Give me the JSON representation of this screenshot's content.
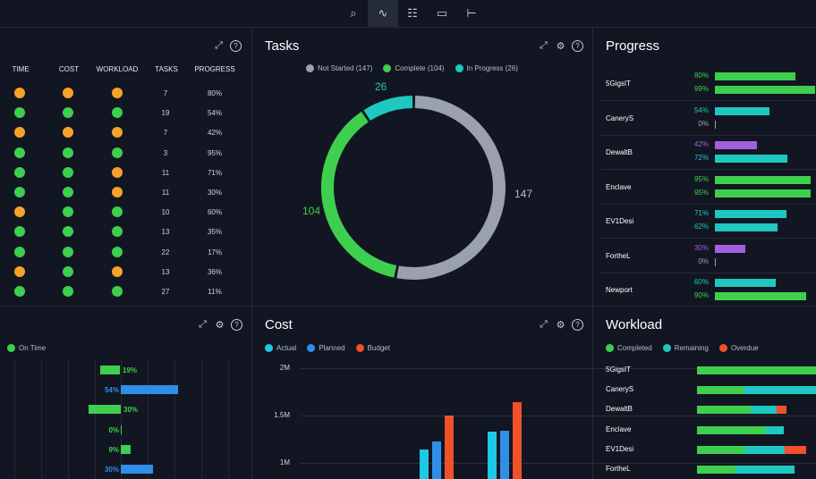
{
  "toolbar": {
    "buttons": [
      {
        "name": "zoom-icon",
        "glyph": "⌕"
      },
      {
        "name": "pulse-icon",
        "glyph": "∿",
        "active": true
      },
      {
        "name": "clipboard-icon",
        "glyph": "☷"
      },
      {
        "name": "link-icon",
        "glyph": "▭"
      },
      {
        "name": "hierarchy-icon",
        "glyph": "⊢"
      }
    ]
  },
  "health": {
    "headers": [
      "TIME",
      "COST",
      "WORKLOAD",
      "TASKS",
      "PROGRESS"
    ],
    "status_colors": {
      "green": "#3ecf4e",
      "orange": "#f6a22a"
    },
    "rows": [
      {
        "time": "orange",
        "cost": "orange",
        "workload": "orange",
        "tasks": "7",
        "progress": "80%"
      },
      {
        "time": "green",
        "cost": "green",
        "workload": "green",
        "tasks": "19",
        "progress": "54%"
      },
      {
        "time": "orange",
        "cost": "orange",
        "workload": "orange",
        "tasks": "7",
        "progress": "42%"
      },
      {
        "time": "green",
        "cost": "green",
        "workload": "green",
        "tasks": "3",
        "progress": "95%"
      },
      {
        "time": "green",
        "cost": "green",
        "workload": "orange",
        "tasks": "11",
        "progress": "71%"
      },
      {
        "time": "green",
        "cost": "green",
        "workload": "orange",
        "tasks": "11",
        "progress": "30%"
      },
      {
        "time": "orange",
        "cost": "green",
        "workload": "green",
        "tasks": "10",
        "progress": "60%"
      },
      {
        "time": "green",
        "cost": "green",
        "workload": "green",
        "tasks": "13",
        "progress": "35%"
      },
      {
        "time": "green",
        "cost": "green",
        "workload": "green",
        "tasks": "22",
        "progress": "17%"
      },
      {
        "time": "orange",
        "cost": "green",
        "workload": "orange",
        "tasks": "13",
        "progress": "36%"
      },
      {
        "time": "green",
        "cost": "green",
        "workload": "green",
        "tasks": "27",
        "progress": "11%"
      }
    ]
  },
  "tasks": {
    "title": "Tasks",
    "legend": [
      {
        "label": "Not Started (147)",
        "color": "#9aa0ae"
      },
      {
        "label": "Complete (104)",
        "color": "#3ecf4e"
      },
      {
        "label": "In Progress (26)",
        "color": "#1ec8c0"
      }
    ],
    "labels": {
      "in_progress": "26",
      "complete": "104",
      "not_started": "147"
    },
    "chart_data": {
      "type": "pie",
      "categories": [
        "Not Started",
        "Complete",
        "In Progress"
      ],
      "values": [
        147,
        104,
        26
      ]
    }
  },
  "progress": {
    "title": "Progress",
    "rows": [
      {
        "name": "5GigsIT",
        "bars": [
          {
            "pct": "80%",
            "value": 0.8,
            "color": "#3ecf4e"
          },
          {
            "pct": "99%",
            "value": 0.99,
            "color": "#3ecf4e"
          }
        ]
      },
      {
        "name": "CaneryS",
        "bars": [
          {
            "pct": "54%",
            "value": 0.54,
            "color": "#1ec8c0"
          },
          {
            "pct": "0%",
            "value": 0,
            "color": "#9aa0ae"
          }
        ]
      },
      {
        "name": "DewaltB",
        "bars": [
          {
            "pct": "42%",
            "value": 0.42,
            "color": "#a45fe0"
          },
          {
            "pct": "72%",
            "value": 0.72,
            "color": "#1ec8c0"
          }
        ]
      },
      {
        "name": "Enclave",
        "bars": [
          {
            "pct": "95%",
            "value": 0.95,
            "color": "#3ecf4e"
          },
          {
            "pct": "95%",
            "value": 0.95,
            "color": "#3ecf4e"
          }
        ]
      },
      {
        "name": "EV1Desi",
        "bars": [
          {
            "pct": "71%",
            "value": 0.71,
            "color": "#1ec8c0"
          },
          {
            "pct": "62%",
            "value": 0.62,
            "color": "#1ec8c0"
          }
        ]
      },
      {
        "name": "FortheL",
        "bars": [
          {
            "pct": "30%",
            "value": 0.3,
            "color": "#a45fe0"
          },
          {
            "pct": "0%",
            "value": 0,
            "color": "#9aa0ae"
          }
        ]
      },
      {
        "name": "Newport",
        "bars": [
          {
            "pct": "60%",
            "value": 0.6,
            "color": "#1ec8c0"
          },
          {
            "pct": "90%",
            "value": 0.9,
            "color": "#3ecf4e"
          }
        ]
      }
    ]
  },
  "ontime": {
    "legend": {
      "label": "On Time",
      "color": "#3ecf4e"
    },
    "rows": [
      {
        "label": "19%",
        "value": 19,
        "color": "#3ecf4e"
      },
      {
        "label": "54%",
        "value": 54,
        "color": "#2f8fe8"
      },
      {
        "label": "30%",
        "value": -30,
        "color": "#3ecf4e"
      },
      {
        "label": "0%",
        "value": 0,
        "color": "#3ecf4e"
      },
      {
        "label": "9%",
        "value": 9,
        "color": "#3ecf4e"
      },
      {
        "label": "30%",
        "value": 30,
        "color": "#2f8fe8"
      }
    ]
  },
  "cost": {
    "title": "Cost",
    "legend": [
      {
        "label": "Actual",
        "color": "#1ec8e6"
      },
      {
        "label": "Planned",
        "color": "#2f8fe8"
      },
      {
        "label": "Budget",
        "color": "#f0502a"
      }
    ],
    "chart_data": {
      "type": "bar",
      "yticks": [
        "2M",
        "1.5M",
        "1M"
      ],
      "ylim": [
        0,
        2000000
      ],
      "series": [
        {
          "name": "Actual",
          "values": [
            1140000,
            1330000
          ]
        },
        {
          "name": "Planned",
          "values": [
            1230000,
            1340000
          ]
        },
        {
          "name": "Budget",
          "values": [
            1500000,
            1640000
          ]
        }
      ]
    }
  },
  "workload": {
    "title": "Workload",
    "legend": [
      {
        "label": "Completed",
        "color": "#3ecf4e"
      },
      {
        "label": "Remaining",
        "color": "#1ec8c0"
      },
      {
        "label": "Overdue",
        "color": "#f0502a"
      }
    ],
    "rows": [
      {
        "name": "5GigsIT",
        "completed": 1.0,
        "remaining": 0,
        "overdue": 0
      },
      {
        "name": "CaneryS",
        "completed": 0.4,
        "remaining": 0.6,
        "overdue": 0
      },
      {
        "name": "DewaltB",
        "completed": 0.45,
        "remaining": 0.22,
        "overdue": 0.08
      },
      {
        "name": "Enclave",
        "completed": 0.58,
        "remaining": 0.15,
        "overdue": 0
      },
      {
        "name": "EV1Desi",
        "completed": 0.4,
        "remaining": 0.34,
        "overdue": 0.18
      },
      {
        "name": "FortheL",
        "completed": 0.32,
        "remaining": 0.5,
        "overdue": 0
      }
    ]
  }
}
